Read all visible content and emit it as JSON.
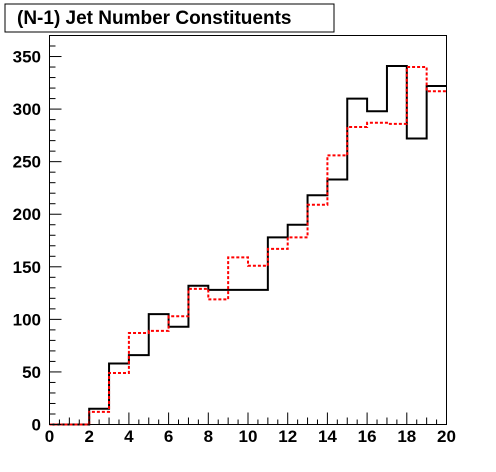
{
  "chart_data": {
    "type": "line",
    "title": "(N-1) Jet Number Constituents",
    "xlabel": "",
    "ylabel": "",
    "xlim": [
      0,
      20
    ],
    "ylim": [
      0,
      370
    ],
    "x_ticks": [
      0,
      2,
      4,
      6,
      8,
      10,
      12,
      14,
      16,
      18,
      20
    ],
    "y_ticks": [
      0,
      50,
      100,
      150,
      200,
      250,
      300,
      350
    ],
    "grid": false,
    "legend": "none",
    "bin_edges": [
      0,
      1,
      2,
      3,
      4,
      5,
      6,
      7,
      8,
      9,
      10,
      11,
      12,
      13,
      14,
      15,
      16,
      17,
      18,
      19,
      20
    ],
    "series": [
      {
        "style": "solid",
        "color": "#000000",
        "values": [
          0,
          0,
          15,
          58,
          66,
          105,
          93,
          132,
          128,
          128,
          128,
          178,
          190,
          218,
          233,
          310,
          298,
          341,
          272,
          322
        ]
      },
      {
        "style": "dashed",
        "color": "#ff0000",
        "values": [
          0,
          0,
          12,
          49,
          87,
          89,
          103,
          129,
          119,
          159,
          151,
          167,
          178,
          209,
          256,
          283,
          287,
          286,
          340,
          317
        ]
      }
    ]
  }
}
